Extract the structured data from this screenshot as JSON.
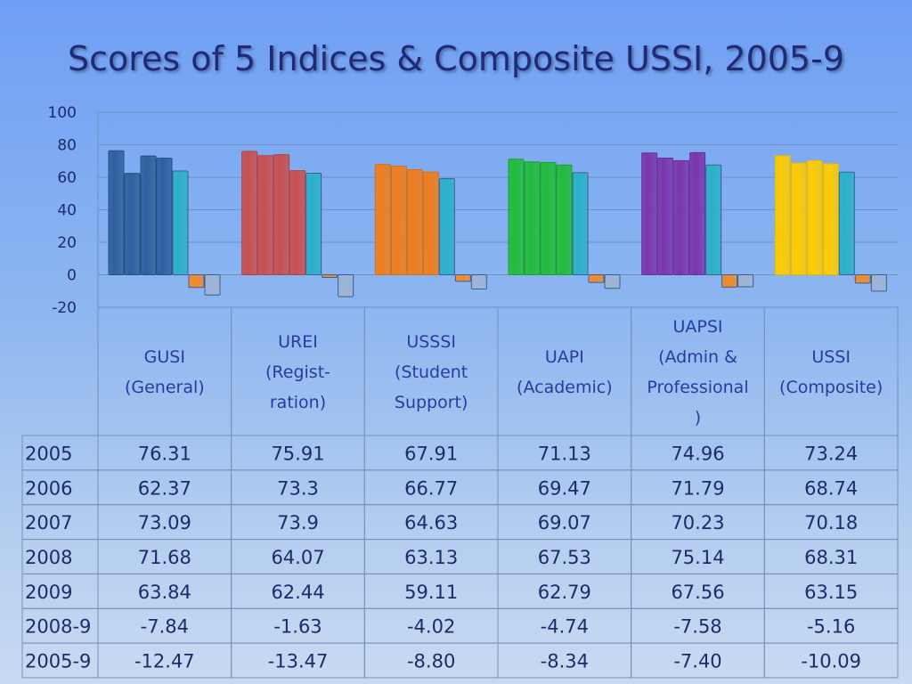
{
  "title": "Scores of 5 Indices & Composite USSI, 2005-9",
  "chart_data": {
    "type": "bar",
    "ylim": [
      -20,
      100
    ],
    "y_ticks": [
      "100",
      "80",
      "60",
      "40",
      "20",
      "0",
      "-20"
    ],
    "grid": true,
    "categories": [
      [
        "GUSI",
        "(General)"
      ],
      [
        "UREI",
        "(Regist-",
        "ration)"
      ],
      [
        "USSSI",
        "(Student",
        "Support)"
      ],
      [
        "UAPI",
        "(Academic)"
      ],
      [
        "UAPSI",
        "(Admin &",
        "Professional",
        ")"
      ],
      [
        "USSI",
        "(Composite)"
      ]
    ],
    "series": [
      {
        "name": "2005",
        "values": [
          76.31,
          75.91,
          67.91,
          71.13,
          74.96,
          73.24
        ],
        "labels": [
          "76.31",
          "75.91",
          "67.91",
          "71.13",
          "74.96",
          "73.24"
        ]
      },
      {
        "name": "2006",
        "values": [
          62.37,
          73.3,
          66.77,
          69.47,
          71.79,
          68.74
        ],
        "labels": [
          "62.37",
          "73.3",
          "66.77",
          "69.47",
          "71.79",
          "68.74"
        ]
      },
      {
        "name": "2007",
        "values": [
          73.09,
          73.9,
          64.63,
          69.07,
          70.23,
          70.18
        ],
        "labels": [
          "73.09",
          "73.9",
          "64.63",
          "69.07",
          "70.23",
          "70.18"
        ]
      },
      {
        "name": "2008",
        "values": [
          71.68,
          64.07,
          63.13,
          67.53,
          75.14,
          68.31
        ],
        "labels": [
          "71.68",
          "64.07",
          "63.13",
          "67.53",
          "75.14",
          "68.31"
        ]
      },
      {
        "name": "2009",
        "values": [
          63.84,
          62.44,
          59.11,
          62.79,
          67.56,
          63.15
        ],
        "labels": [
          "63.84",
          "62.44",
          "59.11",
          "62.79",
          "67.56",
          "63.15"
        ]
      },
      {
        "name": "2008-9",
        "values": [
          -7.84,
          -1.63,
          -4.02,
          -4.74,
          -7.58,
          -5.16
        ],
        "labels": [
          "-7.84",
          "-1.63",
          "-4.02",
          "-4.74",
          "-7.58",
          "-5.16"
        ]
      },
      {
        "name": "2005-9",
        "values": [
          -12.47,
          -13.47,
          -8.8,
          -8.34,
          -7.4,
          -10.09
        ],
        "labels": [
          "-12.47",
          "-13.47",
          "-8.80",
          "-8.34",
          "-7.40",
          "-10.09"
        ]
      }
    ],
    "colors": {
      "group_main": [
        "#2e5f9e",
        "#c94f4f",
        "#f07d1a",
        "#22bb3a",
        "#7a35ad",
        "#ffcc00"
      ],
      "bar5": "#2bb0c8",
      "bar6": "#f08a2a",
      "bar7": "#9fb4d4",
      "group_dark": [
        "#22507f",
        "#b04242",
        "#d96c12",
        "#1aa030",
        "#683096",
        "#e6b800"
      ]
    }
  }
}
